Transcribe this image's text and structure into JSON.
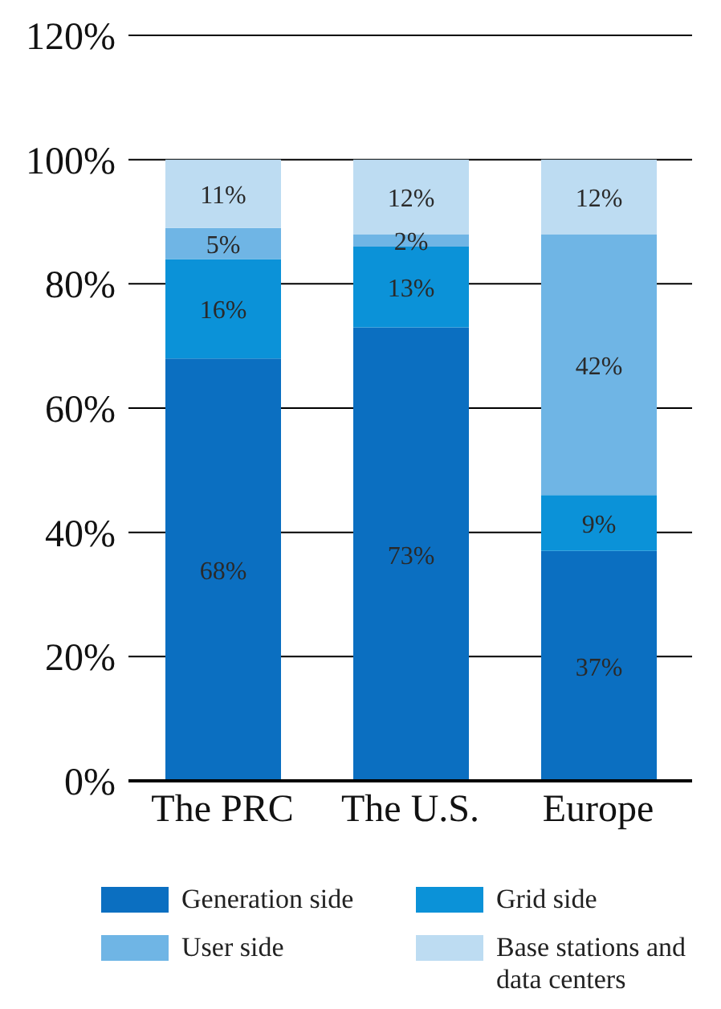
{
  "chart_data": {
    "type": "bar",
    "stacked": true,
    "categories": [
      "The PRC",
      "The U.S.",
      "Europe"
    ],
    "series": [
      {
        "name": "Generation side",
        "color": "#0b6fc1",
        "values": [
          68,
          73,
          37
        ],
        "value_labels": [
          "68%",
          "73%",
          "37%"
        ]
      },
      {
        "name": "Grid side",
        "color": "#0b92d8",
        "values": [
          16,
          13,
          9
        ],
        "value_labels": [
          "16%",
          "13%",
          "9%"
        ]
      },
      {
        "name": "User side",
        "color": "#6fb5e5",
        "values": [
          5,
          2,
          42
        ],
        "value_labels": [
          "5%",
          "2%",
          "42%"
        ]
      },
      {
        "name": "Base stations and data centers",
        "color": "#bddcf2",
        "values": [
          11,
          12,
          12
        ],
        "value_labels": [
          "11%",
          "12%",
          "12%"
        ]
      }
    ],
    "ylim": [
      0,
      120
    ],
    "yticks": [
      {
        "value": 0,
        "label": "0%"
      },
      {
        "value": 20,
        "label": "20%"
      },
      {
        "value": 40,
        "label": "40%"
      },
      {
        "value": 60,
        "label": "60%"
      },
      {
        "value": 80,
        "label": "80%"
      },
      {
        "value": 100,
        "label": "100%"
      },
      {
        "value": 120,
        "label": "120%"
      }
    ],
    "grid": "y",
    "legend": "bottom"
  }
}
